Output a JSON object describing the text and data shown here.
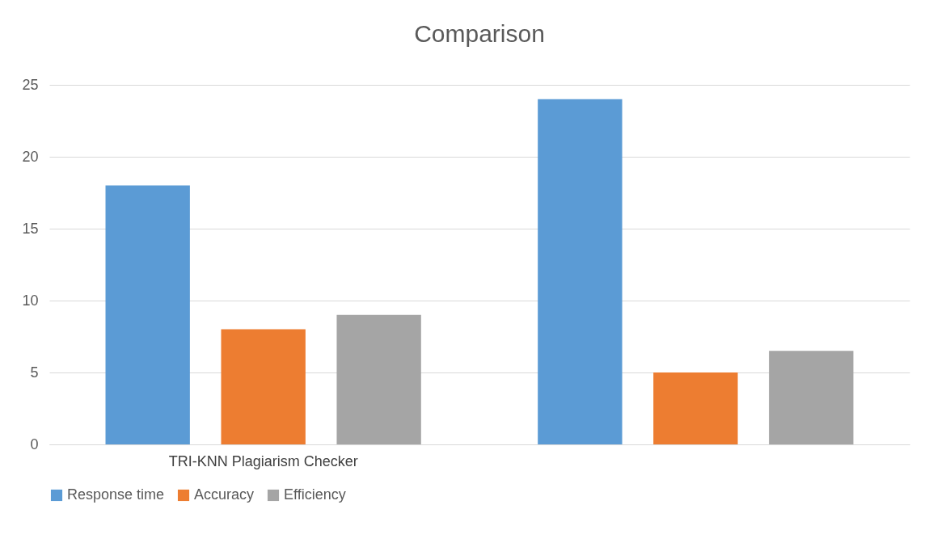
{
  "chart_data": {
    "type": "bar",
    "title": "Comparison",
    "categories": [
      "TRI-KNN Plagiarism Checker",
      null
    ],
    "series": [
      {
        "name": "Response time",
        "color": "#5b9bd5",
        "values": [
          18,
          24
        ]
      },
      {
        "name": "Accuracy",
        "color": "#ed7d31",
        "values": [
          8,
          5
        ]
      },
      {
        "name": "Efficiency",
        "color": "#a5a5a5",
        "values": [
          9,
          6.5
        ]
      }
    ],
    "ylim": [
      0,
      25
    ],
    "yticks": [
      0,
      5,
      10,
      15,
      20,
      25
    ],
    "grid": "y",
    "legend": "bottom"
  }
}
